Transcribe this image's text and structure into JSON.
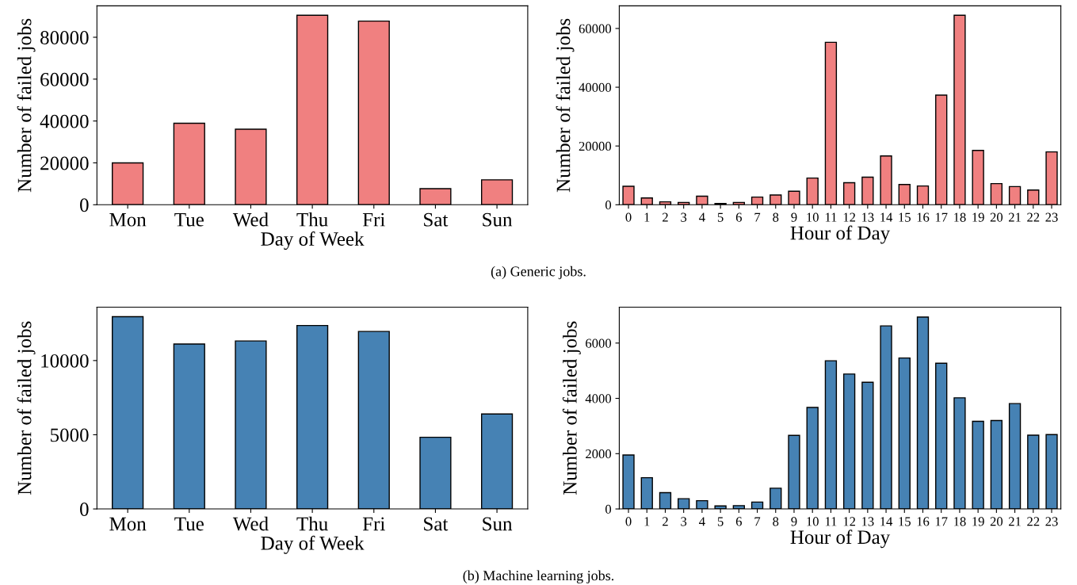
{
  "chart_data": [
    {
      "type": "bar",
      "xlabel": "Day of Week",
      "ylabel": "Number of failed jobs",
      "categories": [
        "Mon",
        "Tue",
        "Wed",
        "Thu",
        "Fri",
        "Sat",
        "Sun"
      ],
      "ylim": [
        0,
        95000
      ],
      "yticks": [
        0,
        20000,
        40000,
        60000,
        80000
      ],
      "grid": false,
      "annotations": [
        "(a) Generic jobs."
      ],
      "series": [
        {
          "color": "#f08080",
          "values": [
            20000,
            38900,
            36100,
            90500,
            87700,
            7700,
            11900
          ]
        }
      ]
    },
    {
      "type": "bar",
      "xlabel": "Hour of Day",
      "ylabel": "Number of failed jobs",
      "categories": [
        "0",
        "1",
        "2",
        "3",
        "4",
        "5",
        "6",
        "7",
        "8",
        "9",
        "10",
        "11",
        "12",
        "13",
        "14",
        "15",
        "16",
        "17",
        "18",
        "19",
        "20",
        "21",
        "22",
        "23"
      ],
      "ylim": [
        0,
        67700
      ],
      "yticks": [
        0,
        20000,
        40000,
        60000
      ],
      "grid": false,
      "series": [
        {
          "color": "#f08080",
          "values": [
            6300,
            2300,
            1000,
            800,
            2900,
            400,
            800,
            2600,
            3300,
            4600,
            9100,
            55300,
            7500,
            9400,
            16600,
            6900,
            6400,
            37300,
            64500,
            18500,
            7200,
            6200,
            5000,
            18000
          ]
        }
      ]
    },
    {
      "type": "bar",
      "xlabel": "Day of Week",
      "ylabel": "Number of failed jobs",
      "categories": [
        "Mon",
        "Tue",
        "Wed",
        "Thu",
        "Fri",
        "Sat",
        "Sun"
      ],
      "ylim": [
        0,
        13600
      ],
      "yticks": [
        0,
        5000,
        10000
      ],
      "grid": false,
      "annotations": [
        "(b) Machine learning jobs."
      ],
      "series": [
        {
          "color": "#4682b4",
          "values": [
            12960,
            11110,
            11320,
            12360,
            11960,
            4830,
            6400
          ]
        }
      ]
    },
    {
      "type": "bar",
      "xlabel": "Hour of Day",
      "ylabel": "Number of failed jobs",
      "categories": [
        "0",
        "1",
        "2",
        "3",
        "4",
        "5",
        "6",
        "7",
        "8",
        "9",
        "10",
        "11",
        "12",
        "13",
        "14",
        "15",
        "16",
        "17",
        "18",
        "19",
        "20",
        "21",
        "22",
        "23"
      ],
      "ylim": [
        0,
        7300
      ],
      "yticks": [
        0,
        2000,
        4000,
        6000
      ],
      "grid": false,
      "series": [
        {
          "color": "#4682b4",
          "values": [
            1950,
            1130,
            590,
            370,
            300,
            110,
            120,
            250,
            750,
            2660,
            3670,
            5360,
            4880,
            4580,
            6620,
            5460,
            6940,
            5270,
            4020,
            3170,
            3200,
            3810,
            2670,
            2690
          ]
        }
      ]
    }
  ]
}
